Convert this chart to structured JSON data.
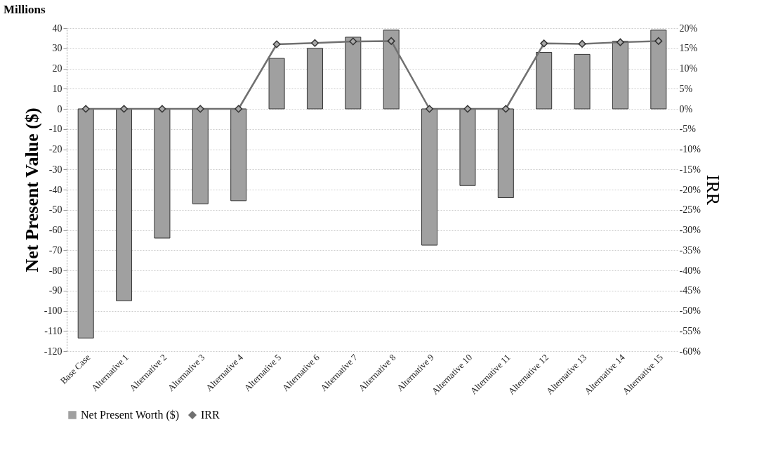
{
  "chart_data": {
    "type": "bar",
    "ylabel": "Net Present Value ($)",
    "y2label": "IRR",
    "annotations": [
      "Millions"
    ],
    "categories": [
      "Base Case",
      "Alternative 1",
      "Alternative 2",
      "Alternative 3",
      "Alternative 4",
      "Alternative 5",
      "Alternative 6",
      "Alternative 7",
      "Alternative 8",
      "Alternative 9",
      "Alternative 10",
      "Alternative 11",
      "Alternative 12",
      "Alternative 13",
      "Alternative 14",
      "Alternative 15"
    ],
    "series": [
      {
        "name": "Net Present Worth ($)",
        "color": "#a0a0a0",
        "values": [
          -113.5,
          -95,
          -64,
          -47,
          -45.5,
          25,
          30,
          35.5,
          39,
          -67.5,
          -38,
          -44,
          28,
          27,
          33.5,
          39
        ]
      },
      {
        "name": "IRR",
        "type": "line",
        "axis": "y2",
        "color": "#707070",
        "values": [
          0,
          0,
          0,
          0,
          0,
          16,
          16.3,
          16.7,
          16.8,
          0,
          0,
          0,
          16.2,
          16.1,
          16.5,
          16.8
        ]
      }
    ],
    "ylim": [
      -120,
      40
    ],
    "yticks": [
      -120,
      -110,
      -100,
      -90,
      -80,
      -70,
      -60,
      -50,
      -40,
      -30,
      -20,
      -10,
      0,
      10,
      20,
      30,
      40
    ],
    "y2lim": [
      -60,
      20
    ],
    "y2ticks": [
      {
        "value": -60,
        "label": "-60%"
      },
      {
        "value": -55,
        "label": "-55%"
      },
      {
        "value": -50,
        "label": "-50%"
      },
      {
        "value": -45,
        "label": "-45%"
      },
      {
        "value": -40,
        "label": "-40%"
      },
      {
        "value": -35,
        "label": "-35%"
      },
      {
        "value": -30,
        "label": "-30%"
      },
      {
        "value": -25,
        "label": "-25%"
      },
      {
        "value": -20,
        "label": "-20%"
      },
      {
        "value": -15,
        "label": "-15%"
      },
      {
        "value": -10,
        "label": "-10%"
      },
      {
        "value": -5,
        "label": "-5%"
      },
      {
        "value": 0,
        "label": "0%"
      },
      {
        "value": 5,
        "label": "5%"
      },
      {
        "value": 10,
        "label": "10%"
      },
      {
        "value": 15,
        "label": "15%"
      },
      {
        "value": 20,
        "label": "20%"
      }
    ],
    "grid": "y",
    "legend": "bottom",
    "marker": "diamond",
    "line_style": "solid"
  }
}
